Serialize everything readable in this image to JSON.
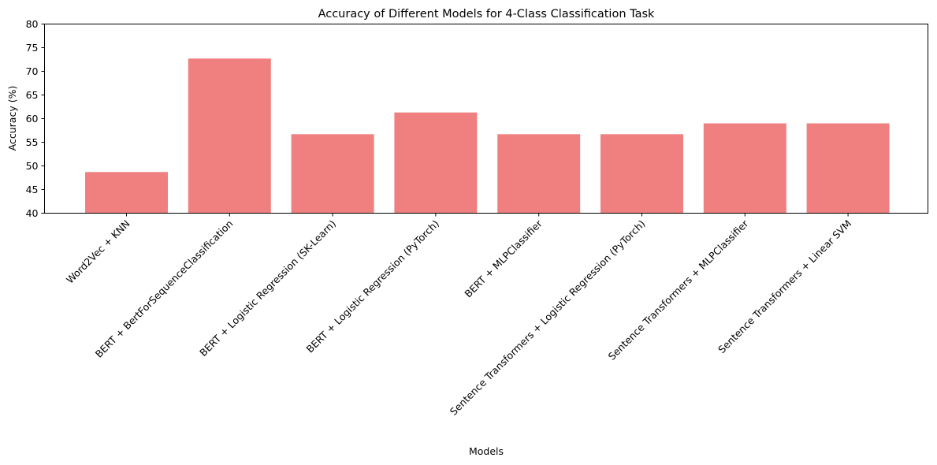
{
  "chart_data": {
    "type": "bar",
    "title": "Accuracy of Different Models for 4-Class Classification Task",
    "xlabel": "Models",
    "ylabel": "Accuracy (%)",
    "ylim": [
      40,
      80
    ],
    "yticks": [
      40,
      45,
      50,
      55,
      60,
      65,
      70,
      75,
      80
    ],
    "grid": false,
    "bar_color": "#f08080",
    "categories": [
      "Word2Vec + KNN",
      "BERT + BertForSequenceClassification",
      "BERT + Logistic Regression (SK-Learn)",
      "BERT + Logistic Regression (PyTorch)",
      "BERT + MLPClassifier",
      "Sentence Transformers + Logistic Regression (PyTorch)",
      "Sentence Transformers + MLPClassifier",
      "Sentence Transformers + Linear SVM"
    ],
    "values": [
      48.7,
      72.7,
      56.7,
      61.3,
      56.7,
      56.7,
      59.0,
      59.0
    ]
  }
}
